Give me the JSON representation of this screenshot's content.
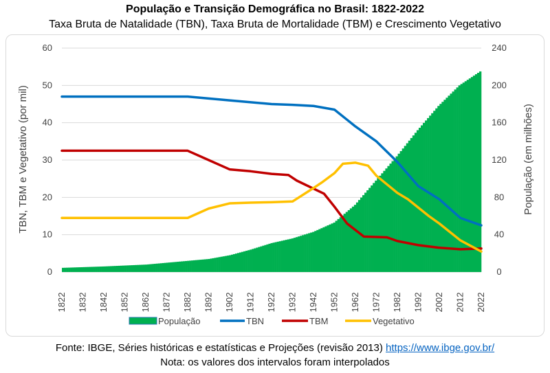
{
  "header": {
    "title": "População e Transição Demográfica no Brasil: 1822-2022",
    "subtitle": "Taxa Bruta de Natalidade (TBN), Taxa Bruta de Mortalidade (TBM) e Crescimento Vegetativo"
  },
  "footer": {
    "source_text": "Fonte: IBGE, Séries históricas e estatísticas e Projeções (revisão 2013)",
    "source_link": "https://www.ibge.gov.br/",
    "note": "Nota: os valores dos intervalos foram interpolados"
  },
  "chart_data": {
    "type": "bar+line",
    "x_ticks": [
      1822,
      1832,
      1842,
      1852,
      1862,
      1872,
      1882,
      1892,
      1902,
      1912,
      1922,
      1932,
      1942,
      1952,
      1962,
      1972,
      1982,
      1992,
      2002,
      2012,
      2022
    ],
    "xlim": [
      1822,
      2022
    ],
    "ylabel_left": "TBN, TBM e Vegetativo (por mil)",
    "ylabel_right": "População (em milhões)",
    "ylim_left": [
      0,
      60
    ],
    "ylim_right": [
      0,
      240
    ],
    "yticks_left": [
      0,
      10,
      20,
      30,
      40,
      50,
      60
    ],
    "yticks_right": [
      0,
      40,
      80,
      120,
      160,
      200,
      240
    ],
    "grid": true,
    "legend_position": "bottom",
    "colors": {
      "population": "#00b050",
      "tbn": "#0070c0",
      "tbm": "#c00000",
      "vegetativo": "#ffc000",
      "grid": "#d9d9d9"
    },
    "series": [
      {
        "name": "População",
        "key": "population",
        "axis": "right",
        "kind": "bar",
        "points": [
          [
            1822,
            4.5
          ],
          [
            1842,
            6
          ],
          [
            1862,
            8
          ],
          [
            1872,
            10
          ],
          [
            1882,
            12
          ],
          [
            1892,
            14
          ],
          [
            1902,
            18
          ],
          [
            1912,
            24
          ],
          [
            1922,
            31
          ],
          [
            1932,
            36
          ],
          [
            1942,
            43
          ],
          [
            1952,
            53
          ],
          [
            1962,
            72
          ],
          [
            1972,
            98
          ],
          [
            1982,
            124
          ],
          [
            1992,
            152
          ],
          [
            2002,
            178
          ],
          [
            2012,
            200
          ],
          [
            2022,
            215
          ]
        ]
      },
      {
        "name": "TBN",
        "key": "tbn",
        "axis": "left",
        "kind": "line",
        "points": [
          [
            1822,
            47
          ],
          [
            1882,
            47
          ],
          [
            1902,
            46
          ],
          [
            1922,
            45
          ],
          [
            1932,
            44.8
          ],
          [
            1942,
            44.5
          ],
          [
            1952,
            43.5
          ],
          [
            1962,
            39
          ],
          [
            1972,
            35
          ],
          [
            1982,
            29.5
          ],
          [
            1992,
            23
          ],
          [
            2002,
            19.5
          ],
          [
            2012,
            14.5
          ],
          [
            2022,
            12.5
          ]
        ]
      },
      {
        "name": "TBM",
        "key": "tbm",
        "axis": "left",
        "kind": "line",
        "points": [
          [
            1822,
            32.5
          ],
          [
            1882,
            32.5
          ],
          [
            1892,
            30
          ],
          [
            1902,
            27.5
          ],
          [
            1912,
            27
          ],
          [
            1922,
            26.3
          ],
          [
            1930,
            26
          ],
          [
            1934,
            24.5
          ],
          [
            1947,
            21
          ],
          [
            1952,
            17.5
          ],
          [
            1958,
            13
          ],
          [
            1966,
            9.5
          ],
          [
            1977,
            9.3
          ],
          [
            1982,
            8.3
          ],
          [
            1992,
            7.2
          ],
          [
            2002,
            6.5
          ],
          [
            2012,
            6.1
          ],
          [
            2022,
            6.3
          ]
        ]
      },
      {
        "name": "Vegetativo",
        "key": "vegetativo",
        "axis": "left",
        "kind": "line",
        "points": [
          [
            1822,
            14.5
          ],
          [
            1882,
            14.5
          ],
          [
            1892,
            17
          ],
          [
            1902,
            18.4
          ],
          [
            1912,
            18.6
          ],
          [
            1922,
            18.7
          ],
          [
            1932,
            18.9
          ],
          [
            1942,
            22.5
          ],
          [
            1946,
            24
          ],
          [
            1952,
            26.5
          ],
          [
            1956,
            29
          ],
          [
            1962,
            29.3
          ],
          [
            1968,
            28.5
          ],
          [
            1972,
            25.8
          ],
          [
            1982,
            21.2
          ],
          [
            1987,
            19.5
          ],
          [
            1997,
            15
          ],
          [
            2002,
            13
          ],
          [
            2012,
            8.5
          ],
          [
            2022,
            5.5
          ]
        ]
      }
    ]
  }
}
